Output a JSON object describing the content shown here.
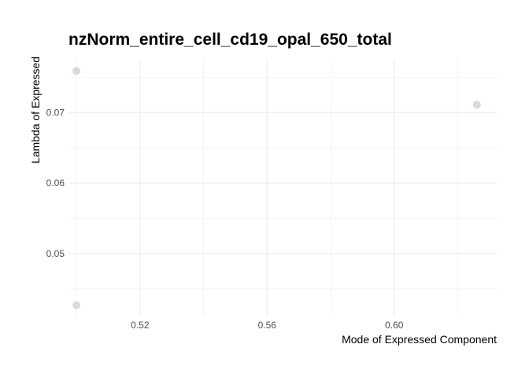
{
  "chart_data": {
    "type": "scatter",
    "title": "nzNorm_entire_cell_cd19_opal_650_total",
    "xlabel": "Mode of Expressed Component",
    "ylabel": "Lambda of Expressed",
    "xlim": [
      0.4975,
      0.6325
    ],
    "ylim": [
      0.0412,
      0.0776
    ],
    "x_ticks": [
      0.52,
      0.56,
      0.6
    ],
    "x_tick_labels": [
      "0.52",
      "0.56",
      "0.60"
    ],
    "y_ticks": [
      0.05,
      0.06,
      0.07
    ],
    "y_tick_labels": [
      "0.05",
      "0.06",
      "0.07"
    ],
    "grid": true,
    "point_color": "#d9d9d9",
    "points": [
      {
        "x": 0.5,
        "y": 0.0759
      },
      {
        "x": 0.626,
        "y": 0.0711
      },
      {
        "x": 0.5,
        "y": 0.0427
      }
    ]
  }
}
